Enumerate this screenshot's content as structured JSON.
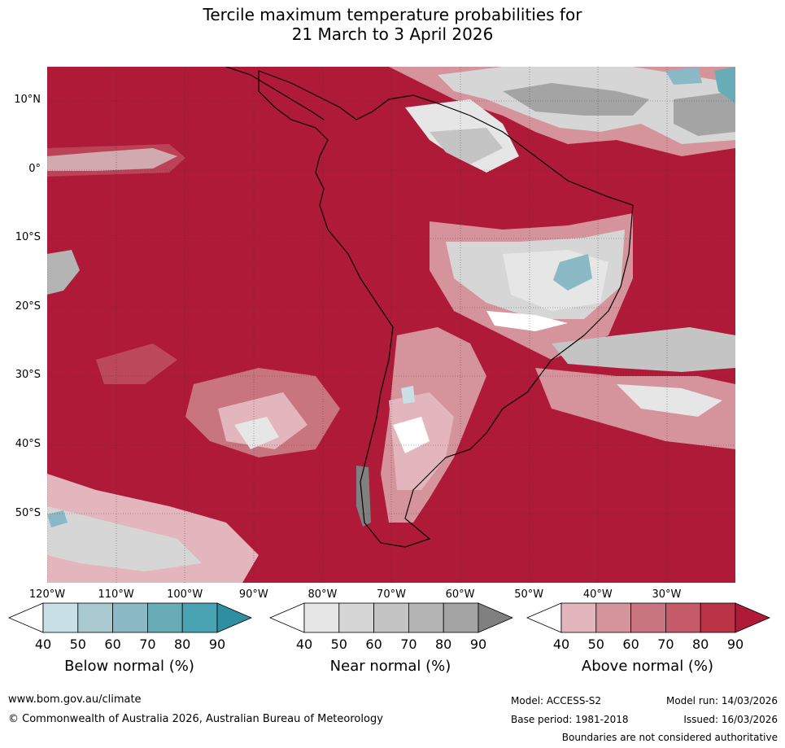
{
  "title": {
    "line1": "Tercile maximum temperature probabilities for",
    "line2": "21 March to 3 April 2026"
  },
  "lat_labels": [
    "10°N",
    "0°",
    "10°S",
    "20°S",
    "30°S",
    "40°S",
    "50°S"
  ],
  "lon_labels": [
    "120°W",
    "110°W",
    "100°W",
    "90°W",
    "80°W",
    "70°W",
    "60°W",
    "50°W",
    "40°W",
    "30°W"
  ],
  "colorbars": [
    {
      "name": "below",
      "title": "Below normal (%)",
      "ticks": [
        "40",
        "50",
        "60",
        "70",
        "80",
        "90"
      ],
      "colors": [
        "#ffffff",
        "#c8e0e6",
        "#a8c9cf",
        "#8ab9c5",
        "#68acb8",
        "#4aa3b3",
        "#2e8fa3"
      ]
    },
    {
      "name": "near",
      "title": "Near normal (%)",
      "ticks": [
        "40",
        "50",
        "60",
        "70",
        "80",
        "90"
      ],
      "colors": [
        "#ffffff",
        "#e6e6e6",
        "#d6d6d6",
        "#c4c4c4",
        "#b4b4b4",
        "#a4a4a4",
        "#808080"
      ]
    },
    {
      "name": "above",
      "title": "Above normal (%)",
      "ticks": [
        "40",
        "50",
        "60",
        "70",
        "80",
        "90"
      ],
      "colors": [
        "#ffffff",
        "#e2b6bc",
        "#d5939b",
        "#c9757f",
        "#c55b69",
        "#b93246",
        "#af1a38"
      ]
    }
  ],
  "footer": {
    "website": "www.bom.gov.au/climate",
    "copyright": "© Commonwealth of Australia 2026, Australian Bureau of Meteorology",
    "model": "Model: ACCESS-S2",
    "base_period": "Base period: 1981-2018",
    "model_run": "Model run: 14/03/2026",
    "issued": "Issued: 16/03/2026",
    "disclaimer": "Boundaries are not considered authoritative"
  }
}
